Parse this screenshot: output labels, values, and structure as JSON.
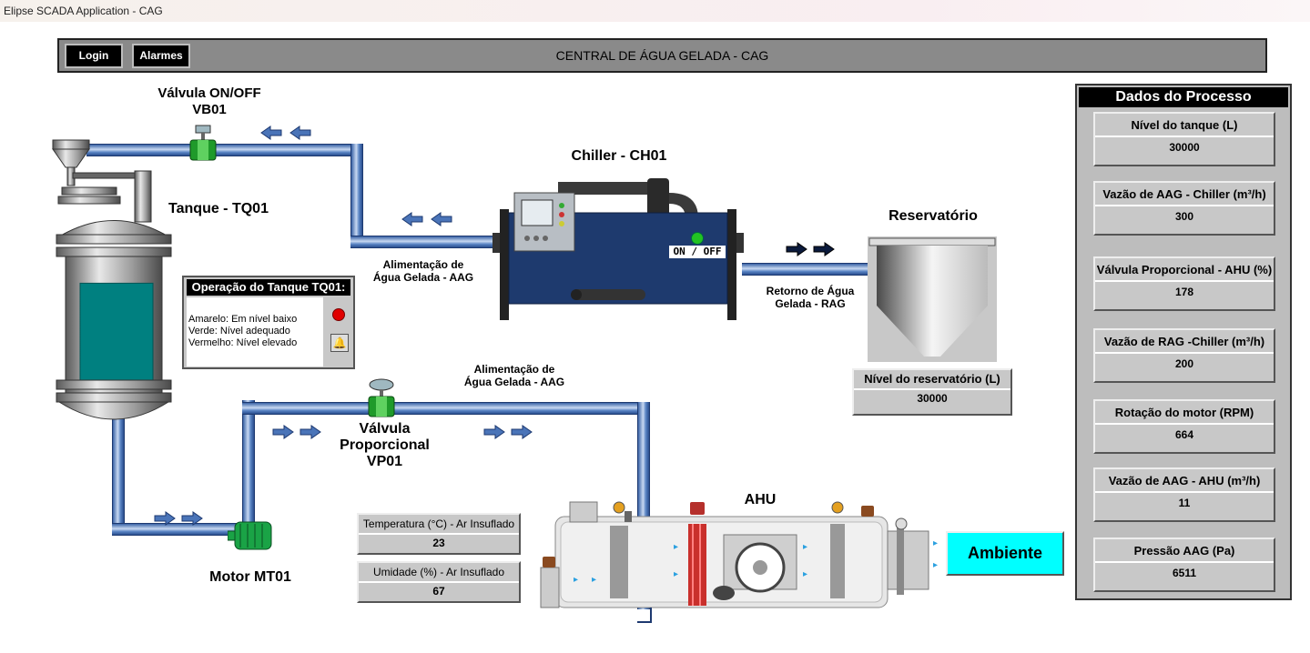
{
  "window": {
    "title": "Elipse SCADA Application - CAG"
  },
  "header": {
    "login_label": "Login",
    "alarms_label": "Alarmes",
    "title": "CENTRAL DE ÁGUA GELADA - CAG"
  },
  "valve_vb01": {
    "line1": "Válvula ON/OFF",
    "line2": "VB01"
  },
  "tank": {
    "label": "Tanque - TQ01",
    "level_fraction": 0.82
  },
  "chiller": {
    "label": "Chiller - CH01",
    "switch_label": "ON / OFF",
    "indicator_color": "#22c322"
  },
  "aag_label_1": {
    "line1": "Alimentação de",
    "line2": "Água Gelada - AAG"
  },
  "aag_label_2": {
    "line1": "Alimentação de",
    "line2": "Água Gelada - AAG"
  },
  "rag_label": {
    "line1": "Retorno de Água",
    "line2": "Gelada - RAG"
  },
  "reservoir": {
    "label": "Reservatório",
    "level_label": "Nível do reservatório (L)",
    "level_value": "30000"
  },
  "tank_operation": {
    "title": "Operação do Tanque TQ01:",
    "line1": "Amarelo: Em nível baixo",
    "line2": "Verde: Nível adequado",
    "line3": "Vermelho: Nível elevado",
    "status_color": "#e00000"
  },
  "valve_vp01": {
    "line1": "Válvula",
    "line2": "Proporcional",
    "line3": "VP01"
  },
  "motor": {
    "label": "Motor MT01"
  },
  "ahu": {
    "label": "AHU"
  },
  "temperature": {
    "label": "Temperatura (°C) - Ar Insuflado",
    "value": "23"
  },
  "humidity": {
    "label": "Umidade (%) - Ar Insuflado",
    "value": "67"
  },
  "ambiente": {
    "label": "Ambiente",
    "color": "#00ffff"
  },
  "process_data": {
    "title": "Dados do Processo",
    "items": [
      {
        "label": "Nível do tanque (L)",
        "value": "30000"
      },
      {
        "label": "Vazão de AAG - Chiller (m³/h)",
        "value": "300"
      },
      {
        "label": "Válvula Proporcional - AHU (%)",
        "value": "178"
      },
      {
        "label": "Vazão de RAG -Chiller (m³/h)",
        "value": "200"
      },
      {
        "label": "Rotação do motor (RPM)",
        "value": "664"
      },
      {
        "label": "Vazão de AAG - AHU (m³/h)",
        "value": "11"
      },
      {
        "label": "Pressão AAG (Pa)",
        "value": "6511"
      }
    ]
  }
}
